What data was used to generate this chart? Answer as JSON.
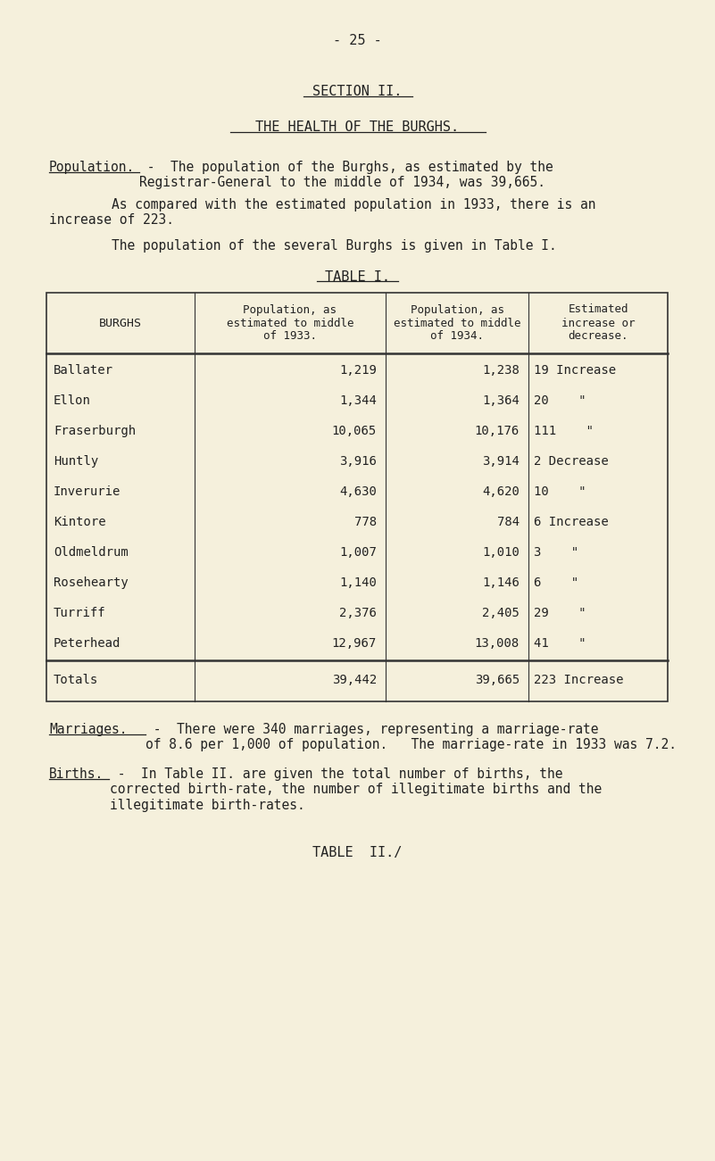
{
  "bg_color": "#f5f0dc",
  "page_number": "- 25 -",
  "section_title": "SECTION II.",
  "subtitle": "THE HEALTH OF THE BURGHS.",
  "para1_label": "Population.",
  "para1_text": " -  The population of the Burghs, as estimated by the\nRegistrar-General to the middle of 1934, was 39,665.",
  "para2": "        As compared with the estimated population in 1933, there is an\nincrease of 223.",
  "para3": "        The population of the several Burghs is given in Table I.",
  "table_title": "TABLE I.",
  "col_headers": [
    "BURGHS",
    "Population, as\nestimated to middle\nof 1933.",
    "Population, as\nestimated to middle\nof 1934.",
    "Estimated\nincrease or\ndecrease."
  ],
  "rows": [
    [
      "Ballater",
      "1,219",
      "1,238",
      "19 Increase"
    ],
    [
      "Ellon",
      "1,344",
      "1,364",
      "20    \""
    ],
    [
      "Fraserburgh",
      "10,065",
      "10,176",
      "111    \""
    ],
    [
      "Huntly",
      "3,916",
      "3,914",
      "2 Decrease"
    ],
    [
      "Inverurie",
      "4,630",
      "4,620",
      "10    \""
    ],
    [
      "Kintore",
      "778",
      "784",
      "6 Increase"
    ],
    [
      "Oldmeldrum",
      "1,007",
      "1,010",
      "3    \""
    ],
    [
      "Rosehearty",
      "1,140",
      "1,146",
      "6    \""
    ],
    [
      "Turriff",
      "2,376",
      "2,405",
      "29    \""
    ],
    [
      "Peterhead",
      "12,967",
      "13,008",
      "41    \""
    ]
  ],
  "totals_row": [
    "Totals",
    "39,442",
    "39,665",
    "223 Increase"
  ],
  "marriages_label": "Marriages.",
  "marriages_text": " -  There were 340 marriages, representing a marriage-rate\nof 8.6 per 1,000 of population.   The marriage-rate in 1933 was 7.2.",
  "births_label": "Births.",
  "births_text": " -  In Table II. are given the total number of births, the\ncorrected birth-rate, the number of illegitimate births and the\nillegitimate birth-rates.",
  "table2_ref": "TABLE  II./"
}
